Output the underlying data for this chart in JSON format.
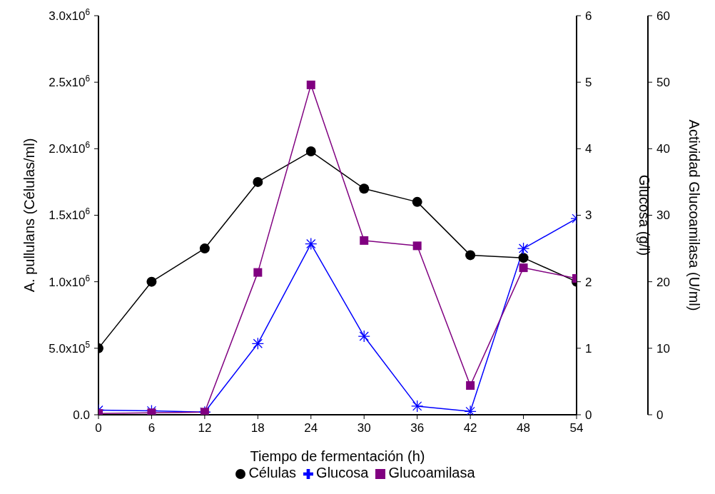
{
  "chart_data": {
    "type": "line",
    "xlabel": "Tiempo de fermentación (h)",
    "ylabel": "A. pullulans (Células/ml)",
    "y2label": "Glucosa (g/l)",
    "y3label": "Actividad Glucoamilasa (U/ml)",
    "x": [
      0,
      6,
      12,
      18,
      24,
      30,
      36,
      42,
      48,
      54
    ],
    "xlim": [
      0,
      54
    ],
    "xticks": [
      0,
      6,
      12,
      18,
      24,
      30,
      36,
      42,
      48,
      54
    ],
    "ylim": [
      0,
      3000000
    ],
    "yticks": [
      {
        "value": 0,
        "label": "0.0"
      },
      {
        "value": 500000,
        "label": "5.0x10$^{5}$"
      },
      {
        "value": 1000000,
        "label": "1.0x10$^{6}$"
      },
      {
        "value": 1500000,
        "label": "1.5x10$^{6}$"
      },
      {
        "value": 2000000,
        "label": "2.0x10$^{6}$"
      },
      {
        "value": 2500000,
        "label": "2.5x10$^{6}$"
      },
      {
        "value": 3000000,
        "label": "3.0x10$^{6}$"
      }
    ],
    "y2lim": [
      0,
      6
    ],
    "y2ticks": [
      0,
      1,
      2,
      3,
      4,
      5,
      6
    ],
    "y3lim": [
      0,
      60
    ],
    "y3ticks": [
      0,
      10,
      20,
      30,
      40,
      50,
      60
    ],
    "grid": false,
    "legend": "bottom",
    "series": [
      {
        "name": "Células",
        "color": "#000000",
        "marker": "circle",
        "values": [
          500000,
          1000000,
          1250000,
          1750000,
          1980000,
          1700000,
          1600000,
          1200000,
          1180000,
          1000000
        ]
      },
      {
        "name": "Glucosa",
        "color": "#0000ff",
        "marker": "cross",
        "axis": "y2",
        "values": [
          0.07,
          0.06,
          0.04,
          1.07,
          2.57,
          1.18,
          0.13,
          0.05,
          2.5,
          2.95
        ]
      },
      {
        "name": "Glucoamilasa",
        "color": "#800080",
        "marker": "square",
        "axis": "y3",
        "values": [
          0.2,
          0.3,
          0.4,
          21.4,
          49.6,
          26.2,
          25.4,
          4.4,
          22.1,
          20.5
        ]
      }
    ]
  }
}
